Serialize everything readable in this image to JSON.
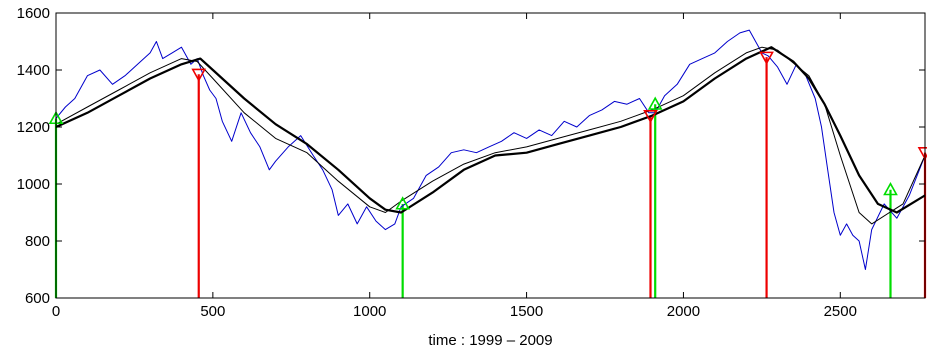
{
  "chart_data": {
    "type": "line",
    "title": "",
    "xlabel": "time : 1999 – 2009",
    "ylabel": "",
    "xlim": [
      0,
      2770
    ],
    "ylim": [
      600,
      1600
    ],
    "x_ticks": [
      0,
      500,
      1000,
      1500,
      2000,
      2500
    ],
    "y_ticks": [
      600,
      800,
      1000,
      1200,
      1400,
      1600
    ],
    "grid": false,
    "legend": "none",
    "colors": {
      "price": "#0000cc",
      "ma_short": "#000000",
      "ma_long": "#000000",
      "buy": "#00dd00",
      "sell": "#ee0000"
    },
    "series": [
      {
        "role": "price",
        "x": [
          0,
          30,
          60,
          100,
          140,
          180,
          220,
          260,
          300,
          320,
          340,
          370,
          400,
          430,
          450,
          470,
          490,
          510,
          530,
          560,
          590,
          620,
          650,
          680,
          700,
          740,
          780,
          820,
          850,
          880,
          900,
          930,
          960,
          990,
          1020,
          1050,
          1080,
          1100,
          1140,
          1180,
          1220,
          1260,
          1300,
          1340,
          1380,
          1420,
          1460,
          1500,
          1540,
          1580,
          1620,
          1660,
          1700,
          1740,
          1780,
          1820,
          1860,
          1890,
          1910,
          1940,
          1980,
          2020,
          2060,
          2100,
          2140,
          2180,
          2210,
          2230,
          2250,
          2270,
          2300,
          2330,
          2360,
          2390,
          2420,
          2440,
          2460,
          2480,
          2500,
          2520,
          2540,
          2560,
          2580,
          2600,
          2640,
          2680,
          2720,
          2770
        ],
        "y": [
          1230,
          1270,
          1300,
          1380,
          1400,
          1350,
          1380,
          1420,
          1460,
          1500,
          1440,
          1460,
          1480,
          1420,
          1440,
          1380,
          1330,
          1300,
          1220,
          1150,
          1250,
          1180,
          1130,
          1050,
          1080,
          1130,
          1170,
          1100,
          1050,
          980,
          890,
          930,
          860,
          920,
          870,
          840,
          860,
          920,
          950,
          1030,
          1060,
          1110,
          1120,
          1110,
          1130,
          1150,
          1180,
          1160,
          1190,
          1170,
          1220,
          1200,
          1240,
          1260,
          1290,
          1280,
          1300,
          1250,
          1250,
          1310,
          1350,
          1420,
          1440,
          1460,
          1500,
          1530,
          1540,
          1500,
          1460,
          1450,
          1410,
          1350,
          1420,
          1380,
          1300,
          1200,
          1050,
          900,
          820,
          860,
          820,
          800,
          700,
          840,
          930,
          880,
          960,
          1100
        ]
      },
      {
        "role": "ma_short",
        "x": [
          0,
          100,
          200,
          300,
          400,
          450,
          500,
          600,
          700,
          800,
          900,
          1000,
          1050,
          1100,
          1200,
          1300,
          1400,
          1500,
          1600,
          1700,
          1800,
          1900,
          2000,
          2100,
          2200,
          2250,
          2300,
          2400,
          2450,
          2500,
          2560,
          2600,
          2700,
          2770
        ],
        "y": [
          1210,
          1270,
          1330,
          1390,
          1440,
          1430,
          1370,
          1250,
          1160,
          1110,
          1010,
          920,
          900,
          940,
          1010,
          1070,
          1110,
          1130,
          1160,
          1190,
          1220,
          1260,
          1310,
          1390,
          1460,
          1480,
          1470,
          1380,
          1280,
          1100,
          900,
          860,
          930,
          1100
        ]
      },
      {
        "role": "ma_long",
        "x": [
          0,
          100,
          200,
          300,
          400,
          460,
          500,
          600,
          700,
          800,
          900,
          1000,
          1050,
          1100,
          1200,
          1300,
          1400,
          1500,
          1600,
          1700,
          1800,
          1900,
          2000,
          2100,
          2200,
          2280,
          2350,
          2400,
          2450,
          2500,
          2560,
          2620,
          2680,
          2770
        ],
        "y": [
          1200,
          1250,
          1310,
          1370,
          1420,
          1440,
          1400,
          1300,
          1210,
          1140,
          1050,
          950,
          910,
          900,
          970,
          1050,
          1100,
          1110,
          1140,
          1170,
          1200,
          1240,
          1290,
          1370,
          1440,
          1480,
          1430,
          1370,
          1280,
          1170,
          1030,
          930,
          900,
          960
        ]
      }
    ],
    "signals": [
      {
        "type": "buy",
        "x": 0,
        "y": 1230
      },
      {
        "type": "sell",
        "x": 455,
        "y": 1385
      },
      {
        "type": "buy",
        "x": 1105,
        "y": 930
      },
      {
        "type": "sell",
        "x": 1895,
        "y": 1240
      },
      {
        "type": "buy",
        "x": 1910,
        "y": 1280
      },
      {
        "type": "sell",
        "x": 2265,
        "y": 1445
      },
      {
        "type": "buy",
        "x": 2660,
        "y": 980
      },
      {
        "type": "sell",
        "x": 2770,
        "y": 1110
      }
    ]
  }
}
